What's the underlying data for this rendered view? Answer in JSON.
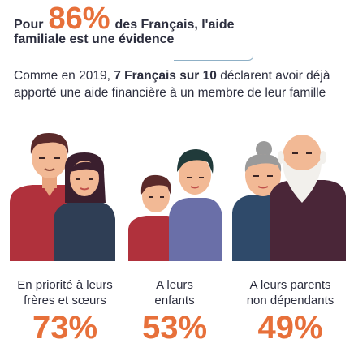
{
  "headline": {
    "prefix": "Pour",
    "percent": "86%",
    "suffix": "des Français, l'aide",
    "line2": "familiale est une évidence"
  },
  "intro": {
    "before": "Comme en 2019, ",
    "bold": "7 Français sur 10",
    "after": " déclarent avoir déjà apporté une aide financière à un membre de leur famille"
  },
  "stats": [
    {
      "label_line1": "En priorité à leurs",
      "label_line2": "frères et sœurs",
      "percent": "73%"
    },
    {
      "label_line1": "A leurs",
      "label_line2": "enfants",
      "percent": "53%"
    },
    {
      "label_line1": "A leurs parents",
      "label_line2": "non dépendants",
      "percent": "49%"
    }
  ],
  "colors": {
    "accent": "#e7703a",
    "text": "#2c2e3e",
    "callout_line": "#8fb0c6"
  }
}
